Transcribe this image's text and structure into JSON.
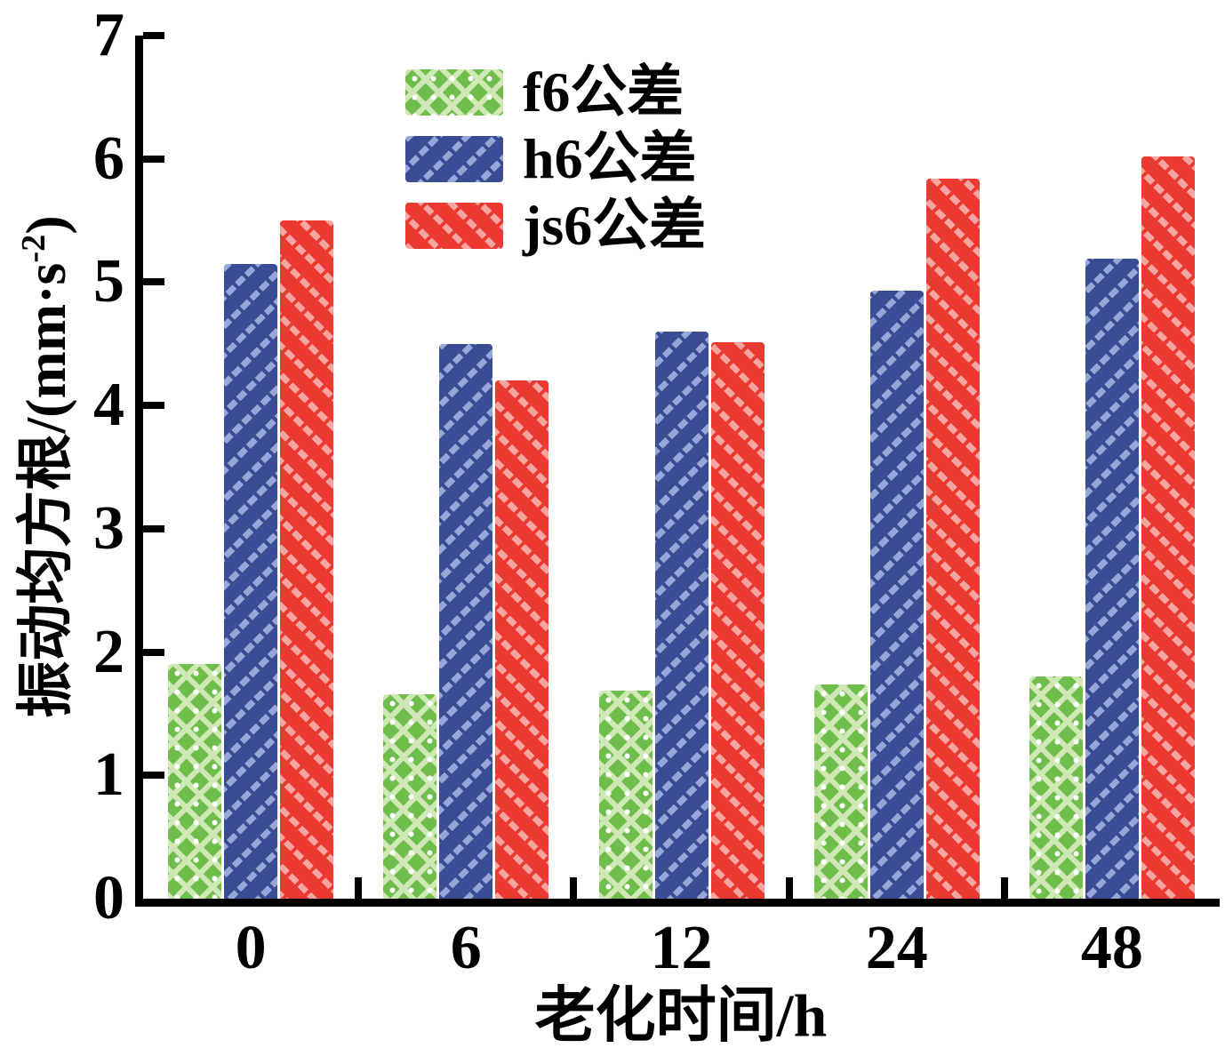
{
  "chart_data": {
    "type": "bar",
    "title": "",
    "xlabel": "老化时间/h",
    "ylabel": "振动均方根/(mm·s⁻²)",
    "ylabel_parts": {
      "prefix": "振动均方根/(mm·s",
      "superscript": "-2",
      "suffix": ")"
    },
    "ylim": [
      0,
      7
    ],
    "ytick_labels": [
      "0",
      "1",
      "2",
      "3",
      "4",
      "5",
      "6",
      "7"
    ],
    "categories": [
      "0",
      "6",
      "12",
      "24",
      "48"
    ],
    "series": [
      {
        "name": "f6公差",
        "color": "#6FBE4B",
        "hatch": "cross-diamond",
        "hatch_color": "#CFE8B6",
        "dot_color": "#FFFFFF",
        "values": [
          1.9,
          1.66,
          1.69,
          1.74,
          1.8
        ]
      },
      {
        "name": "h6公差",
        "color": "#3A4C94",
        "hatch": "diagonal-up",
        "hatch_color": "#96A6D8",
        "values": [
          5.15,
          4.5,
          4.6,
          4.93,
          5.19
        ]
      },
      {
        "name": "js6公差",
        "color": "#EB3A31",
        "hatch": "diagonal-down",
        "hatch_color": "#F7A5A0",
        "values": [
          5.5,
          4.2,
          4.51,
          5.84,
          6.02
        ]
      }
    ],
    "legend_position": "top-inside",
    "grid": false,
    "axis_color": "#000000",
    "text_color": "#000000",
    "background_color": "#FFFFFF"
  }
}
